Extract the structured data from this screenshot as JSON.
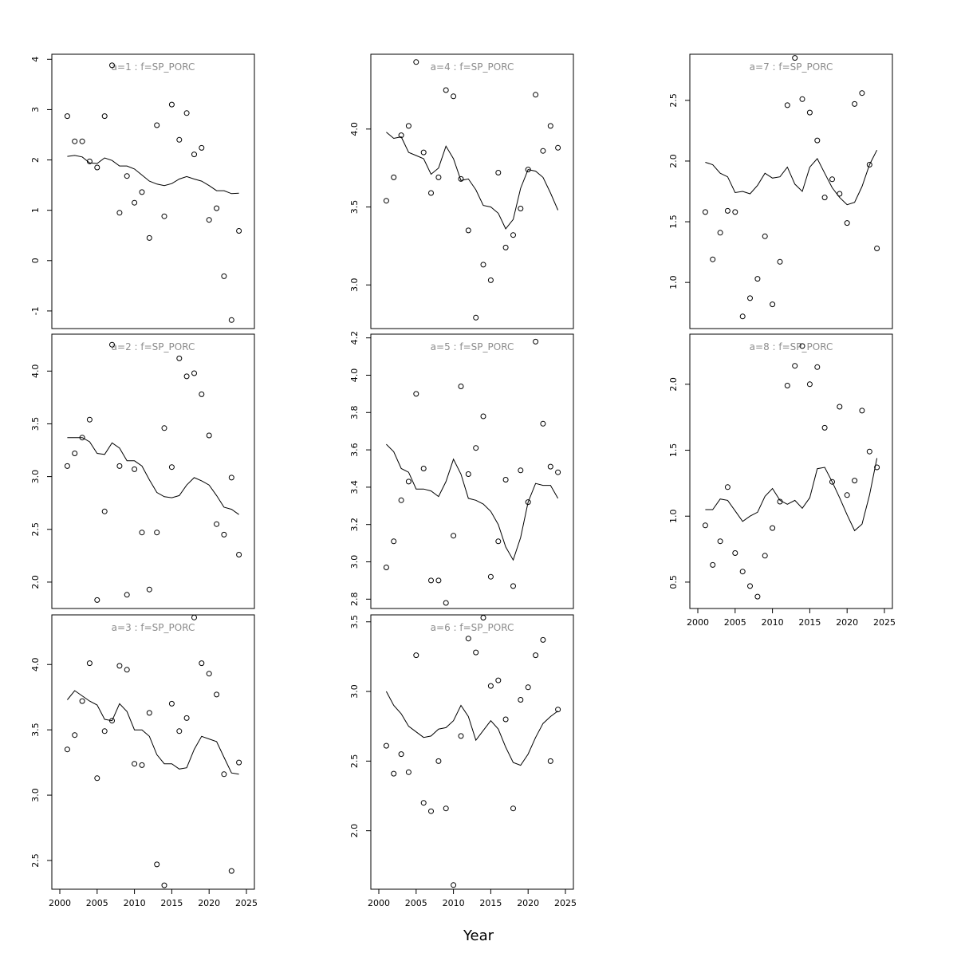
{
  "figure": {
    "xlabel": "Year"
  },
  "colors": {
    "title": "#8c8c8c",
    "ink": "#000000",
    "background": "#ffffff"
  },
  "chart_data": [
    {
      "type": "scatter",
      "title": "a=1  :  f=SP_PORC",
      "xlim": [
        2000,
        2025
      ],
      "ylim": [
        -1.35,
        4.1
      ],
      "yticks": [
        -1,
        0,
        1,
        2,
        3,
        4
      ],
      "xticks": [],
      "x": [
        2001,
        2002,
        2003,
        2004,
        2005,
        2006,
        2007,
        2008,
        2009,
        2010,
        2011,
        2012,
        2013,
        2014,
        2015,
        2016,
        2017,
        2018,
        2019,
        2020,
        2021,
        2022,
        2023,
        2024
      ],
      "points": [
        2.87,
        2.37,
        2.37,
        1.97,
        1.85,
        2.87,
        3.88,
        0.95,
        1.68,
        1.15,
        1.36,
        0.45,
        2.69,
        0.88,
        3.1,
        2.4,
        2.93,
        2.11,
        2.24,
        0.81,
        1.04,
        -0.31,
        -1.18,
        0.59
      ],
      "line": [
        2.07,
        2.09,
        2.06,
        1.94,
        1.93,
        2.04,
        1.99,
        1.88,
        1.88,
        1.82,
        1.7,
        1.58,
        1.52,
        1.49,
        1.53,
        1.62,
        1.67,
        1.62,
        1.58,
        1.49,
        1.39,
        1.39,
        1.33,
        1.34
      ]
    },
    {
      "type": "scatter",
      "title": "a=2  :  f=SP_PORC",
      "xlim": [
        2000,
        2025
      ],
      "ylim": [
        1.75,
        4.35
      ],
      "yticks": [
        2.0,
        2.5,
        3.0,
        3.5,
        4.0
      ],
      "xticks": [],
      "x": [
        2001,
        2002,
        2003,
        2004,
        2005,
        2006,
        2007,
        2008,
        2009,
        2010,
        2011,
        2012,
        2013,
        2014,
        2015,
        2016,
        2017,
        2018,
        2019,
        2020,
        2021,
        2022,
        2023,
        2024
      ],
      "points": [
        3.1,
        3.22,
        3.37,
        3.54,
        1.83,
        2.67,
        4.25,
        3.1,
        1.88,
        3.07,
        2.47,
        1.93,
        2.47,
        3.46,
        3.09,
        4.12,
        3.95,
        3.98,
        3.78,
        3.39,
        2.55,
        2.45,
        2.99,
        2.26
      ],
      "line": [
        3.37,
        3.37,
        3.37,
        3.33,
        3.22,
        3.21,
        3.32,
        3.27,
        3.15,
        3.15,
        3.1,
        2.97,
        2.85,
        2.81,
        2.8,
        2.82,
        2.92,
        2.99,
        2.96,
        2.92,
        2.82,
        2.71,
        2.69,
        2.64
      ]
    },
    {
      "type": "scatter",
      "title": "a=3  :  f=SP_PORC",
      "xlim": [
        2000,
        2025
      ],
      "ylim": [
        2.28,
        4.38
      ],
      "yticks": [
        2.5,
        3.0,
        3.5,
        4.0
      ],
      "xticks": [
        2000,
        2005,
        2010,
        2015,
        2020,
        2025
      ],
      "x": [
        2001,
        2002,
        2003,
        2004,
        2005,
        2006,
        2007,
        2008,
        2009,
        2010,
        2011,
        2012,
        2013,
        2014,
        2015,
        2016,
        2017,
        2018,
        2019,
        2020,
        2021,
        2022,
        2023,
        2024
      ],
      "points": [
        3.35,
        3.46,
        3.72,
        4.01,
        3.13,
        3.49,
        3.57,
        3.99,
        3.96,
        3.24,
        3.23,
        3.63,
        2.47,
        2.31,
        3.7,
        3.49,
        3.59,
        4.36,
        4.01,
        3.93,
        3.77,
        3.16,
        2.42,
        3.25
      ],
      "line": [
        3.73,
        3.8,
        3.76,
        3.72,
        3.69,
        3.58,
        3.57,
        3.7,
        3.64,
        3.5,
        3.5,
        3.45,
        3.31,
        3.24,
        3.24,
        3.2,
        3.21,
        3.35,
        3.45,
        3.43,
        3.41,
        3.29,
        3.17,
        3.16
      ]
    },
    {
      "type": "scatter",
      "title": "a=4  :  f=SP_PORC",
      "xlim": [
        2000,
        2025
      ],
      "ylim": [
        2.72,
        4.48
      ],
      "yticks": [
        3.0,
        3.5,
        4.0
      ],
      "xticks": [],
      "x": [
        2001,
        2002,
        2003,
        2004,
        2005,
        2006,
        2007,
        2008,
        2009,
        2010,
        2011,
        2012,
        2013,
        2014,
        2015,
        2016,
        2017,
        2018,
        2019,
        2020,
        2021,
        2022,
        2023,
        2024
      ],
      "points": [
        3.54,
        3.69,
        3.96,
        4.02,
        4.43,
        3.85,
        3.59,
        3.69,
        4.25,
        4.21,
        3.68,
        3.35,
        2.79,
        3.13,
        3.03,
        3.72,
        3.24,
        3.32,
        3.49,
        3.74,
        4.22,
        3.86,
        4.02,
        3.88
      ],
      "line": [
        3.98,
        3.94,
        3.95,
        3.85,
        3.83,
        3.81,
        3.71,
        3.75,
        3.89,
        3.81,
        3.67,
        3.68,
        3.61,
        3.51,
        3.5,
        3.46,
        3.36,
        3.42,
        3.62,
        3.74,
        3.73,
        3.69,
        3.59,
        3.48
      ]
    },
    {
      "type": "scatter",
      "title": "a=5  :  f=SP_PORC",
      "xlim": [
        2000,
        2025
      ],
      "ylim": [
        2.75,
        4.22
      ],
      "yticks": [
        2.8,
        3.0,
        3.2,
        3.4,
        3.6,
        3.8,
        4.0,
        4.2
      ],
      "xticks": [],
      "x": [
        2001,
        2002,
        2003,
        2004,
        2005,
        2006,
        2007,
        2008,
        2009,
        2010,
        2011,
        2012,
        2013,
        2014,
        2015,
        2016,
        2017,
        2018,
        2019,
        2020,
        2021,
        2022,
        2023,
        2024
      ],
      "points": [
        2.97,
        3.11,
        3.33,
        3.43,
        3.9,
        3.5,
        2.9,
        2.9,
        2.78,
        3.14,
        3.94,
        3.47,
        3.61,
        3.78,
        2.92,
        3.11,
        3.44,
        2.87,
        3.49,
        3.32,
        4.18,
        3.74,
        3.51,
        3.48
      ],
      "line": [
        3.63,
        3.59,
        3.5,
        3.48,
        3.39,
        3.39,
        3.38,
        3.35,
        3.43,
        3.55,
        3.47,
        3.34,
        3.33,
        3.31,
        3.27,
        3.2,
        3.08,
        3.01,
        3.13,
        3.32,
        3.42,
        3.41,
        3.41,
        3.34
      ]
    },
    {
      "type": "scatter",
      "title": "a=6  :  f=SP_PORC",
      "xlim": [
        2000,
        2025
      ],
      "ylim": [
        1.58,
        3.55
      ],
      "yticks": [
        2.0,
        2.5,
        3.0,
        3.5
      ],
      "xticks": [
        2000,
        2005,
        2010,
        2015,
        2020,
        2025
      ],
      "x": [
        2001,
        2002,
        2003,
        2004,
        2005,
        2006,
        2007,
        2008,
        2009,
        2010,
        2011,
        2012,
        2013,
        2014,
        2015,
        2016,
        2017,
        2018,
        2019,
        2020,
        2021,
        2022,
        2023,
        2024
      ],
      "points": [
        2.61,
        2.41,
        2.55,
        2.42,
        3.26,
        2.2,
        2.14,
        2.5,
        2.16,
        1.61,
        2.68,
        3.38,
        3.28,
        3.53,
        3.04,
        3.08,
        2.8,
        2.16,
        2.94,
        3.03,
        3.26,
        3.37,
        2.5,
        2.87
      ],
      "line": [
        3.0,
        2.9,
        2.84,
        2.75,
        2.71,
        2.67,
        2.68,
        2.73,
        2.74,
        2.79,
        2.9,
        2.82,
        2.65,
        2.72,
        2.79,
        2.73,
        2.6,
        2.49,
        2.47,
        2.55,
        2.67,
        2.77,
        2.82,
        2.86
      ]
    },
    {
      "type": "scatter",
      "title": "a=7  :  f=SP_PORC",
      "xlim": [
        2000,
        2025
      ],
      "ylim": [
        0.62,
        2.88
      ],
      "yticks": [
        1.0,
        1.5,
        2.0,
        2.5
      ],
      "xticks": [],
      "x": [
        2001,
        2002,
        2003,
        2004,
        2005,
        2006,
        2007,
        2008,
        2009,
        2010,
        2011,
        2012,
        2013,
        2014,
        2015,
        2016,
        2017,
        2018,
        2019,
        2020,
        2021,
        2022,
        2023,
        2024
      ],
      "points": [
        1.58,
        1.19,
        1.41,
        1.59,
        1.58,
        0.72,
        0.87,
        1.03,
        1.38,
        0.82,
        1.17,
        2.46,
        2.85,
        2.51,
        2.4,
        2.17,
        1.7,
        1.85,
        1.73,
        1.49,
        2.47,
        2.56,
        1.97,
        1.28
      ],
      "line": [
        1.99,
        1.97,
        1.9,
        1.87,
        1.74,
        1.75,
        1.73,
        1.8,
        1.9,
        1.86,
        1.87,
        1.95,
        1.81,
        1.75,
        1.95,
        2.02,
        1.9,
        1.78,
        1.7,
        1.64,
        1.66,
        1.79,
        1.97,
        2.09
      ]
    },
    {
      "type": "scatter",
      "title": "a=8  :  f=SP_PORC",
      "xlim": [
        2000,
        2025
      ],
      "ylim": [
        0.3,
        2.38
      ],
      "yticks": [
        0.5,
        1.0,
        1.5,
        2.0
      ],
      "xticks": [
        2000,
        2005,
        2010,
        2015,
        2020,
        2025
      ],
      "x": [
        2001,
        2002,
        2003,
        2004,
        2005,
        2006,
        2007,
        2008,
        2009,
        2010,
        2011,
        2012,
        2013,
        2014,
        2015,
        2016,
        2017,
        2018,
        2019,
        2020,
        2021,
        2022,
        2023,
        2024
      ],
      "points": [
        0.93,
        0.63,
        0.81,
        1.22,
        0.72,
        0.58,
        0.47,
        0.39,
        0.7,
        0.91,
        1.11,
        1.99,
        2.14,
        2.29,
        2.0,
        2.13,
        1.67,
        1.26,
        1.83,
        1.16,
        1.27,
        1.8,
        1.49,
        1.37
      ],
      "line": [
        1.05,
        1.05,
        1.13,
        1.12,
        1.04,
        0.96,
        1.0,
        1.03,
        1.15,
        1.21,
        1.12,
        1.09,
        1.12,
        1.06,
        1.14,
        1.36,
        1.37,
        1.26,
        1.14,
        1.01,
        0.89,
        0.94,
        1.16,
        1.44
      ]
    }
  ]
}
